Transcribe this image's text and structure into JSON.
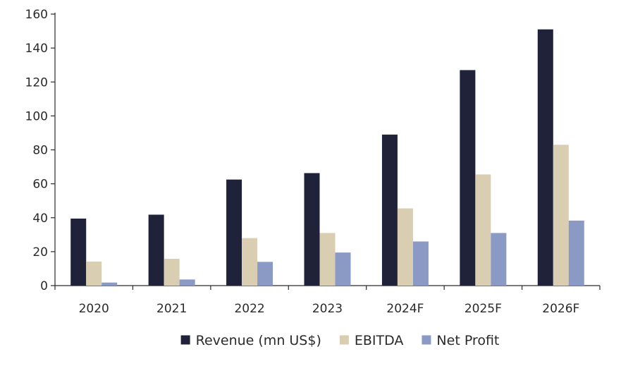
{
  "chart_data": {
    "type": "bar",
    "categories": [
      "2020",
      "2021",
      "2022",
      "2023",
      "2024F",
      "2025F",
      "2026F"
    ],
    "series": [
      {
        "name": "Revenue (mn US$)",
        "color": "#1f2238",
        "values": [
          39.5,
          41.8,
          62.5,
          66.3,
          89.0,
          127.0,
          151.0
        ]
      },
      {
        "name": "EBITDA",
        "color": "#d9ceb1",
        "values": [
          14.2,
          15.8,
          28.0,
          31.0,
          45.5,
          65.5,
          83.0
        ]
      },
      {
        "name": "Net Profit",
        "color": "#8b9ac4",
        "values": [
          1.8,
          3.6,
          14.0,
          19.5,
          26.0,
          31.0,
          38.3
        ]
      }
    ],
    "y_ticks": [
      0,
      20,
      40,
      60,
      80,
      100,
      120,
      140,
      160
    ],
    "ylim": [
      0,
      160
    ],
    "grid": false,
    "legend_position": "bottom",
    "title": "",
    "xlabel": "",
    "ylabel": ""
  }
}
